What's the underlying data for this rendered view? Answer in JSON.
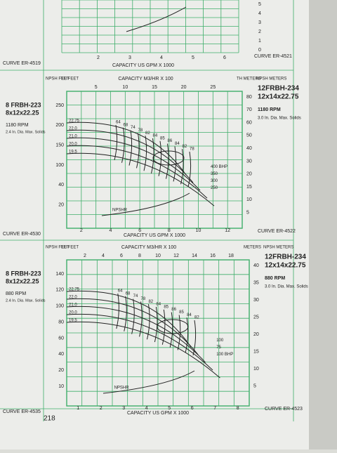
{
  "top": {
    "x_axis_label": "CAPACITY US GPM X 1000",
    "xticks": [
      2,
      3,
      4,
      5,
      6
    ],
    "right_ticks": [
      5,
      4,
      3,
      2,
      1,
      0
    ],
    "curve_left": "CURVE ER-4519",
    "curve_right": "CURVE ER-4521"
  },
  "panels": [
    {
      "left_model": "8 FRBH-223",
      "left_size": "8x12x22.25",
      "left_rpm": "1180 RPM",
      "left_solids": "2.4 In. Dia. Max. Solids",
      "model": "12FRBH-234",
      "size": "12x14x22.75",
      "rpm": "1180 RPM",
      "solids": "3.0 In. Dia. Max. Solids",
      "top_axis": "CAPACITY M3/HR X 100",
      "bottom_axis": "CAPACITY US GPM X 1000",
      "left_head": [
        "NPSH FEET",
        "TH FEET"
      ],
      "right_head": [
        "TH METERS",
        "NPSH METERS"
      ],
      "top_ticks": [
        5,
        10,
        15,
        20,
        25
      ],
      "bottom_ticks": [
        2,
        4,
        6,
        8,
        10,
        12
      ],
      "left_ticks": [
        250,
        200,
        150,
        100,
        40,
        20
      ],
      "right_ticks": [
        80,
        70,
        60,
        50,
        40,
        30,
        20,
        15,
        10,
        5
      ],
      "diameters": [
        "22.75",
        "22.0",
        "21.0",
        "20.0",
        "19.5"
      ],
      "efficiency": [
        64,
        68,
        74,
        78,
        82,
        84,
        85,
        86,
        84,
        82,
        78
      ],
      "power": [
        "400 BHP",
        "350",
        "300",
        "250"
      ],
      "npshr": "NPSHR",
      "curve_left": "CURVE ER-4530",
      "curve_right": "CURVE ER-4522"
    },
    {
      "left_model": "8 FRBH-223",
      "left_size": "8x12x22.25",
      "left_rpm": "880 RPM",
      "left_solids": "2.4 In. Dia. Max. Solids",
      "model": "12FRBH-234",
      "size": "12x14x22.75",
      "rpm": "880 RPM",
      "solids": "3.0 In. Dia. Max. Solids",
      "top_axis": "CAPACITY M3/HR X 100",
      "bottom_axis": "CAPACITY US GPM X 1000",
      "left_head": [
        "NPSH FEET",
        "TH FEET"
      ],
      "right_head": [
        "METERS",
        "NPSH METERS"
      ],
      "top_ticks": [
        2,
        4,
        6,
        8,
        10,
        12,
        14,
        16,
        18
      ],
      "bottom_ticks": [
        1,
        2,
        3,
        4,
        5,
        6,
        7,
        8
      ],
      "left_ticks": [
        140,
        120,
        100,
        80,
        60,
        40,
        20,
        10
      ],
      "right_ticks": [
        40,
        35,
        30,
        25,
        20,
        15,
        10,
        5
      ],
      "diameters": [
        "22.75",
        "22.0",
        "21.0",
        "20.0",
        "19.5"
      ],
      "efficiency": [
        64,
        68,
        74,
        78,
        82,
        84,
        85,
        86,
        85,
        84,
        82
      ],
      "power": [
        "100",
        "75",
        "100 BHP"
      ],
      "npshr": "NPSHR",
      "curve_left": "CURVE ER-4535",
      "curve_right": "CURVE ER-4523"
    }
  ],
  "page_number": "218"
}
